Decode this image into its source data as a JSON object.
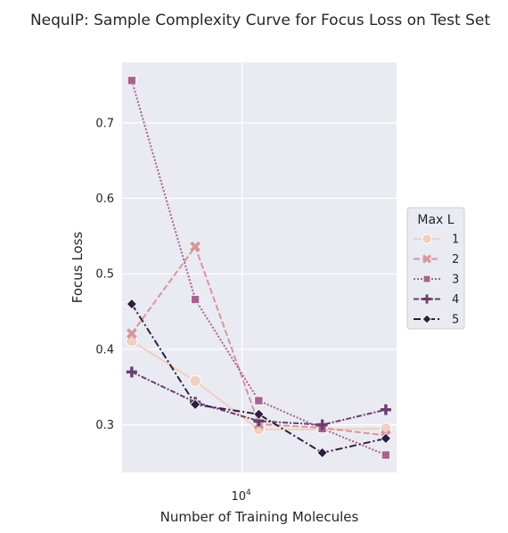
{
  "chart_data": {
    "type": "line",
    "title": "NequIP: Sample Complexity Curve for Focus Loss on Test Set",
    "xlabel": "Number of Training Molecules",
    "ylabel": "Focus Loss",
    "x_scale": "log",
    "x_ticks": [
      {
        "value": 10000,
        "base": "10",
        "exp": "4"
      }
    ],
    "y_ticks": [
      "0.3",
      "0.4",
      "0.5",
      "0.6",
      "0.7"
    ],
    "ylim": [
      0.237,
      0.78
    ],
    "grid": true,
    "legend": {
      "title": "Max L",
      "position": "right"
    },
    "x": [
      3000,
      6000,
      12000,
      24000,
      48000
    ],
    "series": [
      {
        "name": "1",
        "color": "#efd0c3",
        "dash": "",
        "marker": "circle",
        "values": [
          0.411,
          0.358,
          0.294,
          0.294,
          0.295
        ]
      },
      {
        "name": "2",
        "color": "#d5969c",
        "dash": "7,3",
        "marker": "x",
        "values": [
          0.421,
          0.536,
          0.301,
          0.296,
          0.286
        ]
      },
      {
        "name": "3",
        "color": "#a56490",
        "dash": "2,2",
        "marker": "square",
        "values": [
          0.756,
          0.466,
          0.332,
          0.295,
          0.26
        ]
      },
      {
        "name": "4",
        "color": "#6a3f6d",
        "dash": "6,2,2,2",
        "marker": "plus",
        "values": [
          0.37,
          0.33,
          0.305,
          0.3,
          0.32
        ]
      },
      {
        "name": "5",
        "color": "#2d1e3e",
        "dash": "8,3,2,3",
        "marker": "diamond",
        "values": [
          0.46,
          0.327,
          0.314,
          0.263,
          0.282
        ]
      }
    ]
  }
}
